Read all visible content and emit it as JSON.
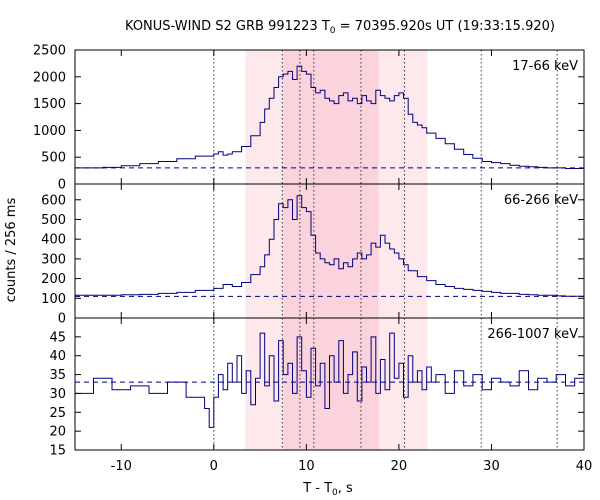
{
  "chart_data": {
    "type": "line",
    "style": "step",
    "title": {
      "main": "KONUS-WIND S2 GRB 991223 T",
      "sub": "0",
      "rest": " = 70395.920s UT (19:33:15.920)"
    },
    "xlabel": {
      "main": "T - T",
      "sub": "0",
      "rest": ", s"
    },
    "ylabel": "counts / 256 ms",
    "xlim": [
      -15,
      40
    ],
    "xticks": [
      -10,
      0,
      10,
      20,
      30,
      40
    ],
    "shaded_regions": [
      {
        "x0": 3.4,
        "x1": 23.1,
        "color": "#fde8ec"
      },
      {
        "x0": 7.5,
        "x1": 17.8,
        "color": "#fad3dc"
      }
    ],
    "vlines": [
      0,
      7.4,
      9.3,
      10.8,
      15.9,
      20.6,
      28.9,
      37.1
    ],
    "panels": [
      {
        "name": "17-66 keV",
        "ylim": [
          0,
          2500
        ],
        "yticks": [
          0,
          500,
          1000,
          1500,
          2000,
          2500
        ],
        "background": 300,
        "series": {
          "x": [
            -15,
            -12,
            -10,
            -8,
            -6,
            -4,
            -2,
            0,
            0.5,
            1,
            1.5,
            2,
            3,
            4,
            5,
            5.5,
            6,
            6.5,
            7,
            7.5,
            8,
            8.5,
            9,
            9.5,
            10,
            10.5,
            11,
            11.5,
            12,
            12.5,
            13,
            13.5,
            14,
            14.5,
            15,
            15.5,
            16,
            16.5,
            17,
            17.5,
            18,
            18.5,
            19,
            19.5,
            20,
            20.5,
            21,
            21.5,
            22,
            22.5,
            23,
            24,
            25,
            26,
            27,
            28,
            29,
            30,
            31,
            32,
            33,
            34,
            35,
            36,
            37,
            38,
            39,
            40
          ],
          "y": [
            300,
            310,
            340,
            380,
            420,
            470,
            520,
            560,
            600,
            540,
            560,
            600,
            700,
            900,
            1150,
            1400,
            1600,
            1800,
            2000,
            2050,
            2100,
            1950,
            2200,
            2100,
            2050,
            1800,
            1700,
            1750,
            1600,
            1550,
            1500,
            1650,
            1700,
            1550,
            1600,
            1500,
            1650,
            1550,
            1500,
            1750,
            1650,
            1600,
            1550,
            1650,
            1700,
            1600,
            1300,
            1150,
            1100,
            1050,
            950,
            850,
            750,
            650,
            550,
            480,
            420,
            400,
            380,
            350,
            330,
            320,
            310,
            300,
            300,
            290,
            290,
            280
          ]
        }
      },
      {
        "name": "66-266 keV",
        "ylim": [
          0,
          680
        ],
        "yticks": [
          0,
          100,
          200,
          300,
          400,
          500,
          600
        ],
        "background": 110,
        "series": {
          "x": [
            -15,
            -12,
            -10,
            -8,
            -6,
            -4,
            -2,
            0,
            1,
            2,
            3,
            4,
            5,
            5.5,
            6,
            6.5,
            7,
            7.5,
            8,
            8.5,
            9,
            9.5,
            10,
            10.5,
            11,
            11.5,
            12,
            12.5,
            13,
            13.5,
            14,
            14.5,
            15,
            15.5,
            16,
            16.5,
            17,
            17.5,
            18,
            18.5,
            19,
            19.5,
            20,
            20.5,
            21,
            22,
            23,
            24,
            25,
            26,
            27,
            28,
            29,
            30,
            31,
            32,
            33,
            34,
            35,
            36,
            37,
            38,
            39,
            40
          ],
          "y": [
            115,
            115,
            118,
            120,
            125,
            130,
            140,
            150,
            170,
            160,
            180,
            220,
            260,
            320,
            400,
            500,
            580,
            560,
            600,
            500,
            620,
            560,
            540,
            420,
            330,
            300,
            280,
            270,
            300,
            250,
            280,
            260,
            300,
            330,
            300,
            320,
            380,
            360,
            420,
            380,
            350,
            330,
            300,
            270,
            240,
            210,
            190,
            170,
            160,
            150,
            145,
            140,
            135,
            130,
            125,
            125,
            120,
            118,
            115,
            115,
            112,
            110,
            110,
            108
          ]
        }
      },
      {
        "name": "266-1007 keV",
        "ylim": [
          15,
          50
        ],
        "yticks": [
          15,
          20,
          25,
          30,
          35,
          40,
          45
        ],
        "background": 33,
        "series": {
          "x": [
            -15,
            -13,
            -11,
            -9,
            -7,
            -5,
            -3,
            -1,
            -0.5,
            0,
            0.5,
            1,
            1.5,
            2,
            2.5,
            3,
            3.5,
            4,
            4.5,
            5,
            5.5,
            6,
            6.5,
            7,
            7.5,
            8,
            8.5,
            9,
            9.5,
            10,
            10.5,
            11,
            11.5,
            12,
            12.5,
            13,
            13.5,
            14,
            14.5,
            15,
            15.5,
            16,
            16.5,
            17,
            17.5,
            18,
            18.5,
            19,
            19.5,
            20,
            20.5,
            21,
            21.5,
            22,
            22.5,
            23,
            23.5,
            24,
            25,
            26,
            27,
            28,
            29,
            30,
            31,
            32,
            33,
            34,
            35,
            36,
            37,
            38,
            39,
            40
          ],
          "y": [
            30,
            34,
            31,
            32,
            30,
            33,
            29,
            26,
            21,
            29,
            35,
            31,
            38,
            33,
            40,
            30,
            36,
            27,
            34,
            46,
            32,
            40,
            28,
            44,
            35,
            38,
            30,
            45,
            36,
            29,
            42,
            32,
            38,
            26,
            40,
            33,
            44,
            30,
            35,
            41,
            28,
            37,
            33,
            45,
            30,
            39,
            31,
            46,
            34,
            38,
            29,
            40,
            33,
            36,
            31,
            37,
            33,
            35,
            30,
            36,
            32,
            35,
            31,
            34,
            33,
            32,
            36,
            31,
            34,
            33,
            35,
            32,
            34,
            33
          ]
        }
      }
    ]
  },
  "colors": {
    "series": "#000080",
    "background_line": "#000080",
    "vlines": "#333333"
  }
}
